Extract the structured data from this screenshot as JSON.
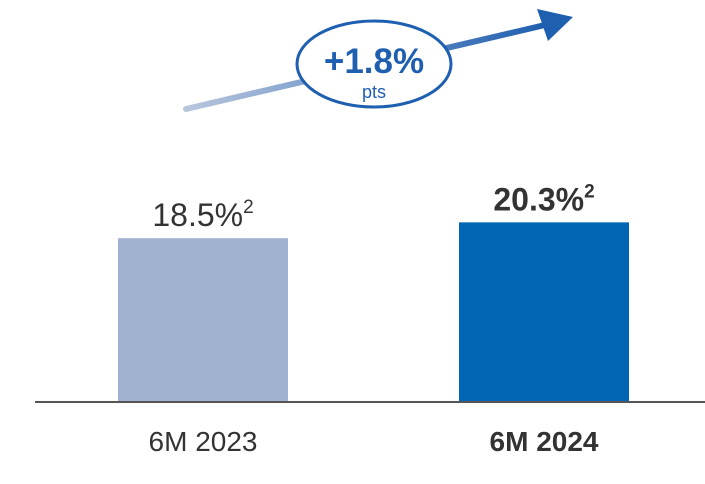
{
  "chart_data": {
    "type": "bar",
    "categories": [
      "6M 2023",
      "6M 2024"
    ],
    "values": [
      18.5,
      20.3
    ],
    "unit": "%",
    "value_labels": [
      "18.5%",
      "20.3%"
    ],
    "footnote_marker": "2",
    "colors": [
      "#a0b2cf",
      "#0065b3"
    ],
    "emphasis": [
      false,
      true
    ],
    "ylim": [
      0,
      22
    ],
    "grid": false,
    "legend": "none",
    "change": {
      "value": "+1.8%",
      "unit": "pts",
      "arrow_direction": "up-right"
    }
  },
  "colors": {
    "axis": "#555555",
    "text": "#333333",
    "accent_dark": "#1f5fb0",
    "accent_light": "#a9bbd6",
    "badge_border": "#1f5fb0"
  }
}
